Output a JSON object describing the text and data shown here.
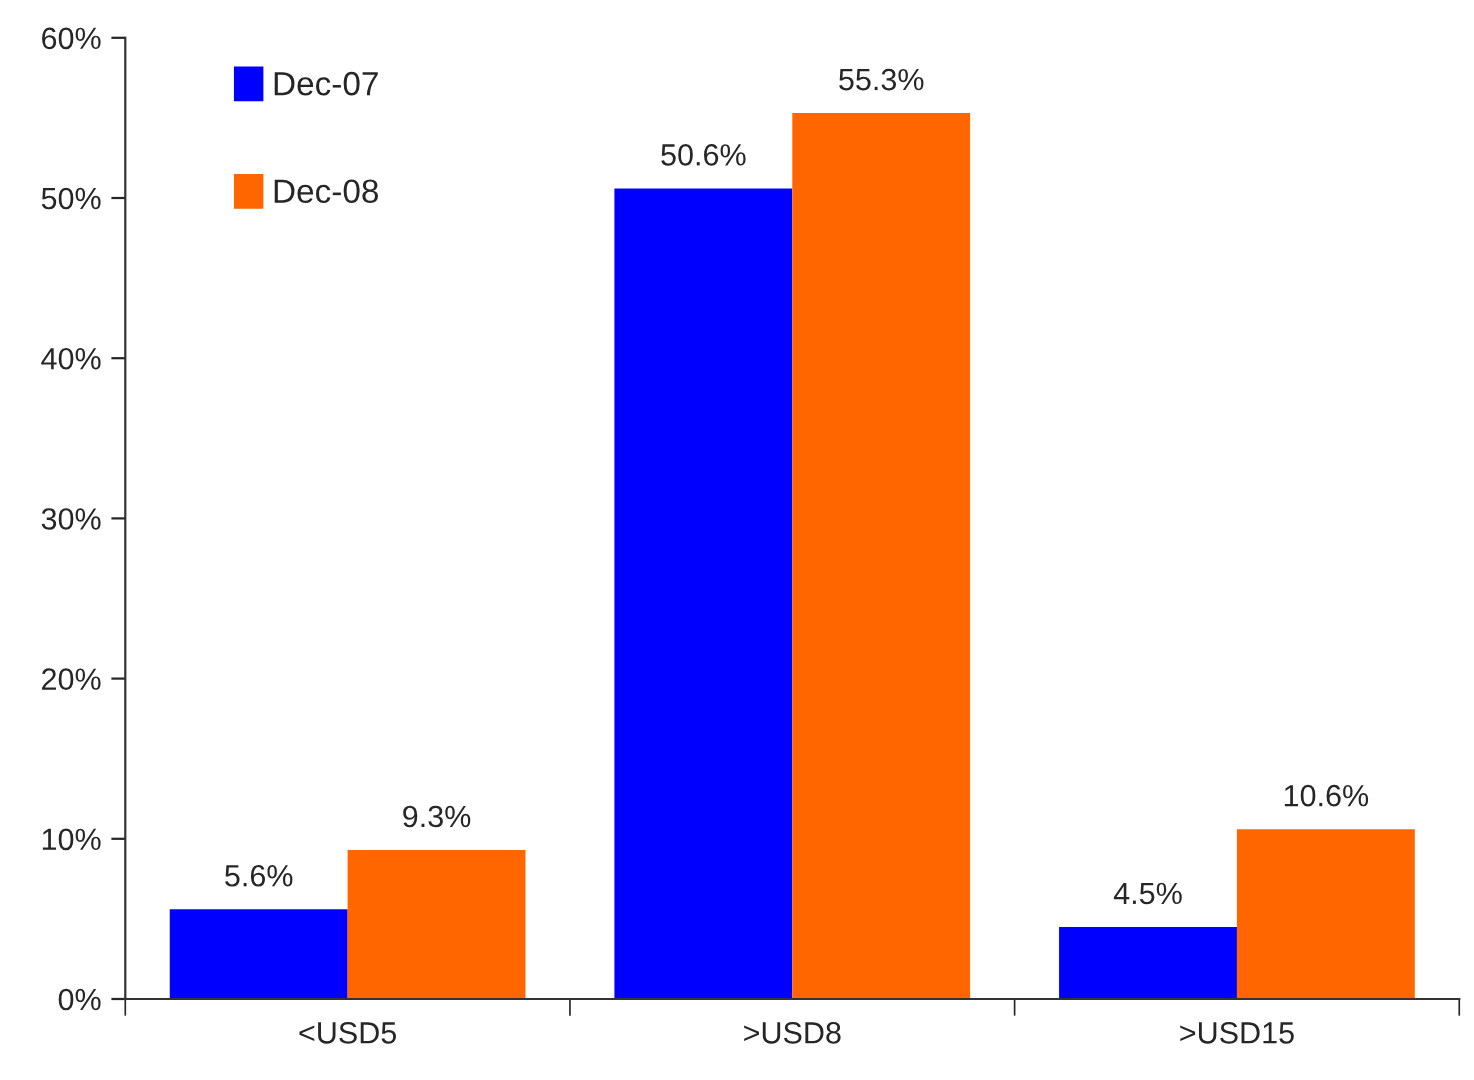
{
  "chart_data": {
    "type": "bar",
    "categories": [
      "<USD5",
      ">USD8",
      ">USD15"
    ],
    "series": [
      {
        "name": "Dec-07",
        "color": "#0000ff",
        "values": [
          5.6,
          50.6,
          4.5
        ],
        "value_labels": [
          "5.6%",
          "50.6%",
          "4.5%"
        ]
      },
      {
        "name": "Dec-08",
        "color": "#ff6600",
        "values": [
          9.3,
          55.3,
          10.6
        ],
        "value_labels": [
          "9.3%",
          "55.3%",
          "10.6%"
        ]
      }
    ],
    "ylim": [
      0,
      60
    ],
    "yticks": [
      {
        "value": 0,
        "label": "0%"
      },
      {
        "value": 10,
        "label": "10%"
      },
      {
        "value": 20,
        "label": "20%"
      },
      {
        "value": 30,
        "label": "30%"
      },
      {
        "value": 40,
        "label": "40%"
      },
      {
        "value": 50,
        "label": "50%"
      },
      {
        "value": 60,
        "label": "60%"
      }
    ],
    "grid": false,
    "legend": "top left"
  }
}
